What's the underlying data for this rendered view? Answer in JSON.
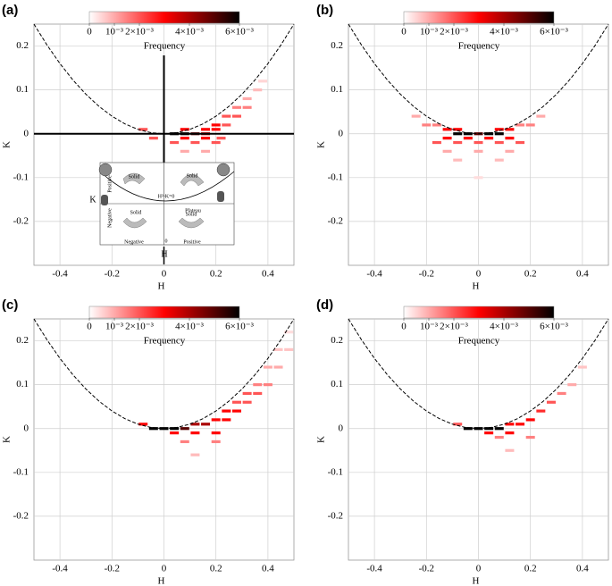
{
  "chart_data": [
    {
      "type": "heatmap",
      "panel_label": "(a)",
      "xlabel": "H",
      "ylabel": "K",
      "xlim": [
        -0.5,
        0.5
      ],
      "ylim": [
        -0.3,
        0.25
      ],
      "xticks": [
        -0.4,
        -0.2,
        0,
        0.2,
        0.4
      ],
      "yticks": [
        -0.2,
        -0.1,
        0,
        0.1,
        0.2
      ],
      "grid": true,
      "colorbar": {
        "label": "Frequency",
        "lim": [
          0,
          0.006
        ],
        "colors": [
          "#ffffff",
          "#ff0000",
          "#000000"
        ],
        "ticks": [
          0,
          {
            "value": 0.001,
            "label": "10⁻³"
          },
          {
            "value": 0.002,
            "label": "2×10⁻³"
          },
          {
            "value": 0.004,
            "label": "4×10⁻³"
          },
          {
            "value": 0.006,
            "label": "6×10⁻³"
          }
        ]
      },
      "curve": {
        "x": [
          -0.5,
          -0.45,
          -0.4,
          -0.35,
          -0.3,
          -0.25,
          -0.2,
          -0.15,
          -0.1,
          -0.05,
          0,
          0.05,
          0.1,
          0.15,
          0.2,
          0.25,
          0.3,
          0.35,
          0.4,
          0.45,
          0.5
        ],
        "values": [
          0.25,
          0.2025,
          0.16,
          0.1225,
          0.09,
          0.0625,
          0.04,
          0.0225,
          0.01,
          0.0025,
          0,
          0.0025,
          0.01,
          0.0225,
          0.04,
          0.0625,
          0.09,
          0.1225,
          0.16,
          0.2025,
          0.25
        ]
      },
      "points": {
        "x": [
          0.04,
          0.08,
          0.12,
          0.16,
          -0.08,
          0.08,
          0.16,
          0.2,
          0.08,
          0.16,
          0.22,
          0.04,
          0.12,
          0.2,
          0.2,
          0.24,
          0.24,
          0.28,
          0.28,
          0.32,
          0.32,
          0.36,
          0.38,
          0.08,
          0.16,
          -0.04
        ],
        "y": [
          0,
          0,
          0,
          0,
          0.01,
          0.01,
          0.01,
          0.01,
          -0.01,
          -0.01,
          -0.01,
          -0.02,
          -0.02,
          -0.02,
          0.02,
          0.02,
          0.04,
          0.04,
          0.06,
          0.06,
          0.08,
          0.1,
          0.12,
          -0.04,
          -0.04,
          -0.01
        ],
        "values": [
          0.006,
          0.006,
          0.005,
          0.004,
          0.002,
          0.003,
          0.003,
          0.003,
          0.003,
          0.003,
          0.002,
          0.002,
          0.002,
          0.002,
          0.003,
          0.002,
          0.002,
          0.002,
          0.0015,
          0.0015,
          0.001,
          0.0008,
          0.0005,
          0.001,
          0.001,
          0.002
        ]
      },
      "inset": {
        "labels": [
          "Solid",
          "Solid",
          "Plateau",
          "Solid",
          "Solid",
          "Negative",
          "Positive",
          "0",
          "H",
          "K",
          "H²-K=0",
          "Negative",
          "Positive"
        ]
      }
    },
    {
      "type": "heatmap",
      "panel_label": "(b)",
      "xlabel": "H",
      "ylabel": "K",
      "xlim": [
        -0.5,
        0.5
      ],
      "ylim": [
        -0.3,
        0.25
      ],
      "xticks": [
        -0.4,
        -0.2,
        0,
        0.2,
        0.4
      ],
      "yticks": [
        -0.2,
        -0.1,
        0,
        0.1,
        0.2
      ],
      "grid": true,
      "colorbar": {
        "label": "Frequency",
        "lim": [
          0,
          0.006
        ],
        "colors": [
          "#ffffff",
          "#ff0000",
          "#000000"
        ],
        "ticks": [
          0,
          {
            "value": 0.001,
            "label": "10⁻³"
          },
          {
            "value": 0.002,
            "label": "2×10⁻³"
          },
          {
            "value": 0.004,
            "label": "4×10⁻³"
          },
          {
            "value": 0.006,
            "label": "6×10⁻³"
          }
        ]
      },
      "curve": {
        "x": [
          -0.5,
          -0.45,
          -0.4,
          -0.35,
          -0.3,
          -0.25,
          -0.2,
          -0.15,
          -0.1,
          -0.05,
          0,
          0.05,
          0.1,
          0.15,
          0.2,
          0.25,
          0.3,
          0.35,
          0.4,
          0.45,
          0.5
        ],
        "values": [
          0.25,
          0.2025,
          0.16,
          0.1225,
          0.09,
          0.0625,
          0.04,
          0.0225,
          0.01,
          0.0025,
          0,
          0.0025,
          0.01,
          0.0225,
          0.04,
          0.0625,
          0.09,
          0.1225,
          0.16,
          0.2025,
          0.25
        ]
      },
      "points": {
        "x": [
          -0.2,
          -0.16,
          0.16,
          0.2,
          -0.12,
          -0.08,
          0.08,
          0.12,
          -0.08,
          -0.04,
          0,
          0.04,
          0.08,
          -0.12,
          -0.04,
          0.04,
          0.12,
          -0.16,
          -0.08,
          0,
          0.08,
          0.16,
          -0.12,
          0,
          0.12,
          -0.08,
          0.08,
          0,
          -0.24,
          0.24
        ],
        "y": [
          0.02,
          0.02,
          0.02,
          0.02,
          0.01,
          0.01,
          0.01,
          0.01,
          0,
          0,
          0,
          0,
          0,
          -0.01,
          -0.01,
          -0.01,
          -0.01,
          -0.02,
          -0.02,
          -0.02,
          -0.02,
          -0.02,
          -0.04,
          -0.04,
          -0.04,
          -0.06,
          -0.06,
          -0.1,
          0.04,
          0.04
        ],
        "values": [
          0.0015,
          0.0015,
          0.0015,
          0.0015,
          0.003,
          0.003,
          0.003,
          0.003,
          0.006,
          0.006,
          0.005,
          0.006,
          0.006,
          0.003,
          0.003,
          0.003,
          0.003,
          0.002,
          0.002,
          0.002,
          0.002,
          0.002,
          0.001,
          0.001,
          0.001,
          0.0008,
          0.0008,
          0.0004,
          0.001,
          0.001
        ]
      }
    },
    {
      "type": "heatmap",
      "panel_label": "(c)",
      "xlabel": "H",
      "ylabel": "K",
      "xlim": [
        -0.5,
        0.5
      ],
      "ylim": [
        -0.3,
        0.25
      ],
      "xticks": [
        -0.4,
        -0.2,
        0,
        0.2,
        0.4
      ],
      "yticks": [
        -0.2,
        -0.1,
        0,
        0.1,
        0.2
      ],
      "grid": true,
      "colorbar": {
        "label": "Frequency",
        "lim": [
          0,
          0.006
        ],
        "colors": [
          "#ffffff",
          "#ff0000",
          "#000000"
        ],
        "ticks": [
          0,
          {
            "value": 0.001,
            "label": "10⁻³"
          },
          {
            "value": 0.002,
            "label": "2×10⁻³"
          },
          {
            "value": 0.004,
            "label": "4×10⁻³"
          },
          {
            "value": 0.006,
            "label": "6×10⁻³"
          }
        ]
      },
      "curve": {
        "x": [
          -0.5,
          -0.45,
          -0.4,
          -0.35,
          -0.3,
          -0.25,
          -0.2,
          -0.15,
          -0.1,
          -0.05,
          0,
          0.05,
          0.1,
          0.15,
          0.2,
          0.25,
          0.3,
          0.35,
          0.4,
          0.45,
          0.5
        ],
        "values": [
          0.25,
          0.2025,
          0.16,
          0.1225,
          0.09,
          0.0625,
          0.04,
          0.0225,
          0.01,
          0.0025,
          0,
          0.0025,
          0.01,
          0.0225,
          0.04,
          0.0625,
          0.09,
          0.1225,
          0.16,
          0.2025,
          0.25
        ]
      },
      "points": {
        "x": [
          -0.04,
          0,
          0.04,
          0.08,
          -0.08,
          0.12,
          0.16,
          0.04,
          0.12,
          0.2,
          0.2,
          0.24,
          0.24,
          0.28,
          0.28,
          0.32,
          0.32,
          0.36,
          0.36,
          0.4,
          0.4,
          0.44,
          0.44,
          0.48,
          0.48,
          0.08,
          0.2,
          0.12
        ],
        "y": [
          0,
          0,
          0,
          0,
          0.01,
          0.01,
          0.01,
          -0.01,
          -0.01,
          -0.01,
          0.02,
          0.02,
          0.04,
          0.04,
          0.06,
          0.06,
          0.08,
          0.08,
          0.1,
          0.1,
          0.14,
          0.14,
          0.18,
          0.18,
          0.22,
          -0.03,
          -0.03,
          -0.06
        ],
        "values": [
          0.006,
          0.006,
          0.006,
          0.005,
          0.003,
          0.004,
          0.004,
          0.003,
          0.003,
          0.003,
          0.003,
          0.003,
          0.003,
          0.003,
          0.002,
          0.002,
          0.002,
          0.002,
          0.0015,
          0.0015,
          0.001,
          0.001,
          0.0007,
          0.0007,
          0.0004,
          0.0015,
          0.0015,
          0.0008
        ]
      }
    },
    {
      "type": "heatmap",
      "panel_label": "(d)",
      "xlabel": "H",
      "ylabel": "K",
      "xlim": [
        -0.5,
        0.5
      ],
      "ylim": [
        -0.3,
        0.25
      ],
      "xticks": [
        -0.4,
        -0.2,
        0,
        0.2,
        0.4
      ],
      "yticks": [
        -0.2,
        -0.1,
        0,
        0.1,
        0.2
      ],
      "grid": true,
      "colorbar": {
        "label": "Frequency",
        "lim": [
          0,
          0.006
        ],
        "colors": [
          "#ffffff",
          "#ff0000",
          "#000000"
        ],
        "ticks": [
          0,
          {
            "value": 0.001,
            "label": "10⁻³"
          },
          {
            "value": 0.002,
            "label": "2×10⁻³"
          },
          {
            "value": 0.004,
            "label": "4×10⁻³"
          },
          {
            "value": 0.006,
            "label": "6×10⁻³"
          }
        ]
      },
      "curve": {
        "x": [
          -0.5,
          -0.45,
          -0.4,
          -0.35,
          -0.3,
          -0.25,
          -0.2,
          -0.15,
          -0.1,
          -0.05,
          0,
          0.05,
          0.1,
          0.15,
          0.2,
          0.25,
          0.3,
          0.35,
          0.4,
          0.45,
          0.5
        ],
        "values": [
          0.25,
          0.2025,
          0.16,
          0.1225,
          0.09,
          0.0625,
          0.04,
          0.0225,
          0.01,
          0.0025,
          0,
          0.0025,
          0.01,
          0.0225,
          0.04,
          0.0625,
          0.09,
          0.1225,
          0.16,
          0.2025,
          0.25
        ]
      },
      "points": {
        "x": [
          -0.04,
          0,
          0.04,
          0.08,
          0.12,
          0.16,
          0.04,
          0.12,
          0.2,
          0.24,
          0.28,
          0.32,
          0.36,
          0.4,
          0.08,
          0.2,
          0.12,
          -0.08
        ],
        "y": [
          0,
          0,
          0,
          0,
          0.01,
          0.01,
          -0.01,
          -0.01,
          0.02,
          0.04,
          0.06,
          0.08,
          0.1,
          0.14,
          -0.02,
          -0.02,
          -0.05,
          0.01
        ],
        "values": [
          0.006,
          0.006,
          0.006,
          0.006,
          0.003,
          0.003,
          0.003,
          0.003,
          0.003,
          0.0025,
          0.002,
          0.0015,
          0.001,
          0.0007,
          0.0015,
          0.0015,
          0.0008,
          0.002
        ]
      }
    }
  ]
}
